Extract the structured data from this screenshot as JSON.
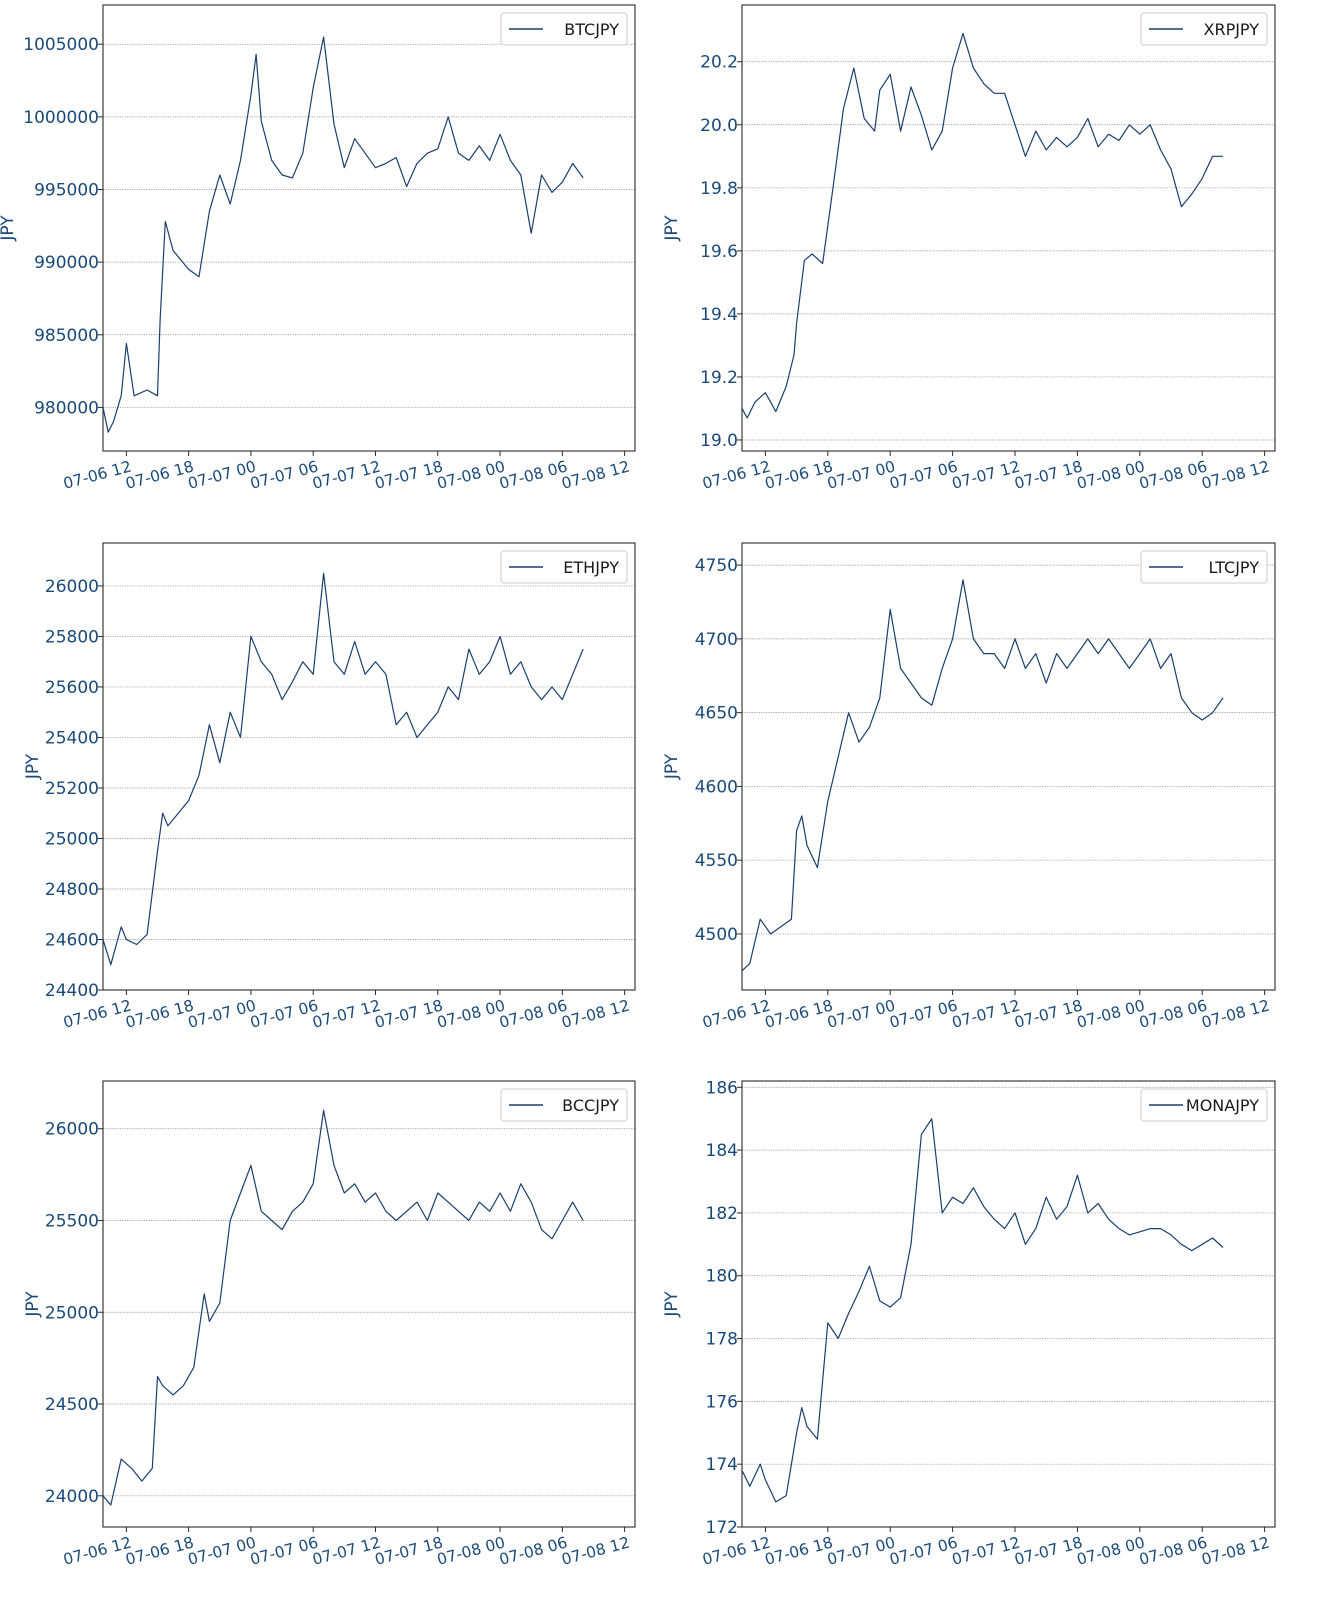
{
  "page": {
    "colors": {
      "series": "#1b3f6e",
      "axis": "#2a2a2a",
      "tick_label": "#1a4a7a",
      "grid": "#8a8a8a",
      "legend_text": "#1a1a1a"
    }
  },
  "x_axis": {
    "ticks": [
      "07-06 12",
      "07-06 18",
      "07-07 00",
      "07-07 06",
      "07-07 12",
      "07-07 18",
      "07-08 00",
      "07-08 06",
      "07-08 12"
    ],
    "range_start": "07-06 09:45",
    "range_end": "07-08 13:00",
    "data_end": "07-08 08:20"
  },
  "chart_data": [
    {
      "type": "line",
      "ylabel": "JPY",
      "ylim": [
        977000,
        1007700
      ],
      "yticks": [
        "980000",
        "985000",
        "990000",
        "995000",
        "1000000",
        "1005000"
      ],
      "yticks_values": [
        980000,
        985000,
        990000,
        995000,
        1000000,
        1005000
      ],
      "grid": "horizontal",
      "legend": "top-right",
      "series": [
        {
          "name": "BTCJPY",
          "x": [
            "07-06 09:45",
            "07-06 10:15",
            "07-06 10:45",
            "07-06 11:30",
            "07-06 12:00",
            "07-06 12:45",
            "07-06 14:00",
            "07-06 15:00",
            "07-06 15:15",
            "07-06 15:45",
            "07-06 16:30",
            "07-06 18:00",
            "07-06 19:00",
            "07-06 20:00",
            "07-06 21:00",
            "07-06 22:00",
            "07-06 23:00",
            "07-07 00:00",
            "07-07 00:30",
            "07-07 01:00",
            "07-07 02:00",
            "07-07 03:00",
            "07-07 04:00",
            "07-07 05:00",
            "07-07 06:00",
            "07-07 07:00",
            "07-07 08:00",
            "07-07 09:00",
            "07-07 10:00",
            "07-07 11:00",
            "07-07 12:00",
            "07-07 13:00",
            "07-07 14:00",
            "07-07 15:00",
            "07-07 16:00",
            "07-07 17:00",
            "07-07 18:00",
            "07-07 19:00",
            "07-07 20:00",
            "07-07 21:00",
            "07-07 22:00",
            "07-07 23:00",
            "07-08 00:00",
            "07-08 01:00",
            "07-08 02:00",
            "07-08 03:00",
            "07-08 04:00",
            "07-08 05:00",
            "07-08 06:00",
            "07-08 07:00",
            "07-08 08:00"
          ],
          "values": [
            980000,
            978300,
            979000,
            980800,
            984400,
            980800,
            981200,
            980800,
            986000,
            992800,
            990800,
            989500,
            989000,
            993500,
            996000,
            994000,
            997000,
            1001500,
            1004300,
            999700,
            997000,
            996000,
            995800,
            997500,
            1002000,
            1005500,
            999500,
            996500,
            998500,
            997500,
            996500,
            996800,
            997200,
            995200,
            996800,
            997500,
            997800,
            1000000,
            997500,
            997000,
            998000,
            997000,
            998800,
            997000,
            996000,
            992000,
            996000,
            994800,
            995500,
            996800,
            995800
          ]
        }
      ]
    },
    {
      "type": "line",
      "ylabel": "JPY",
      "ylim": [
        18.965,
        20.38
      ],
      "yticks": [
        "19.0",
        "19.2",
        "19.4",
        "19.6",
        "19.8",
        "20.0",
        "20.2"
      ],
      "yticks_values": [
        19.0,
        19.2,
        19.4,
        19.6,
        19.8,
        20.0,
        20.2
      ],
      "grid": "horizontal",
      "legend": "top-right",
      "series": [
        {
          "name": "XRPJPY",
          "x": [
            "07-06 09:45",
            "07-06 10:15",
            "07-06 11:00",
            "07-06 12:00",
            "07-06 13:00",
            "07-06 14:00",
            "07-06 14:45",
            "07-06 15:00",
            "07-06 15:45",
            "07-06 16:30",
            "07-06 17:30",
            "07-06 18:30",
            "07-06 19:30",
            "07-06 20:30",
            "07-06 21:30",
            "07-06 22:30",
            "07-06 23:00",
            "07-07 00:00",
            "07-07 01:00",
            "07-07 02:00",
            "07-07 03:00",
            "07-07 04:00",
            "07-07 05:00",
            "07-07 06:00",
            "07-07 07:00",
            "07-07 08:00",
            "07-07 09:00",
            "07-07 10:00",
            "07-07 11:00",
            "07-07 12:00",
            "07-07 13:00",
            "07-07 14:00",
            "07-07 15:00",
            "07-07 16:00",
            "07-07 17:00",
            "07-07 18:00",
            "07-07 19:00",
            "07-07 20:00",
            "07-07 21:00",
            "07-07 22:00",
            "07-07 23:00",
            "07-08 00:00",
            "07-08 01:00",
            "07-08 02:00",
            "07-08 03:00",
            "07-08 04:00",
            "07-08 05:00",
            "07-08 06:00",
            "07-08 07:00",
            "07-08 08:00"
          ],
          "values": [
            19.1,
            19.07,
            19.12,
            19.15,
            19.09,
            19.17,
            19.27,
            19.37,
            19.57,
            19.59,
            19.56,
            19.8,
            20.05,
            20.18,
            20.02,
            19.98,
            20.11,
            20.16,
            19.98,
            20.12,
            20.03,
            19.92,
            19.98,
            20.18,
            20.29,
            20.18,
            20.13,
            20.1,
            20.1,
            20.0,
            19.9,
            19.98,
            19.92,
            19.96,
            19.93,
            19.96,
            20.02,
            19.93,
            19.97,
            19.95,
            20.0,
            19.97,
            20.0,
            19.92,
            19.86,
            19.74,
            19.78,
            19.83,
            19.9,
            19.9
          ]
        }
      ]
    },
    {
      "type": "line",
      "ylabel": "JPY",
      "ylim": [
        24400,
        26170
      ],
      "yticks": [
        "24400",
        "24600",
        "24800",
        "25000",
        "25200",
        "25400",
        "25600",
        "25800",
        "26000"
      ],
      "yticks_values": [
        24400,
        24600,
        24800,
        25000,
        25200,
        25400,
        25600,
        25800,
        26000
      ],
      "grid": "horizontal",
      "legend": "top-right",
      "series": [
        {
          "name": "ETHJPY",
          "x": [
            "07-06 09:45",
            "07-06 10:30",
            "07-06 11:30",
            "07-06 12:00",
            "07-06 13:00",
            "07-06 14:00",
            "07-06 15:00",
            "07-06 15:30",
            "07-06 16:00",
            "07-06 17:00",
            "07-06 18:00",
            "07-06 19:00",
            "07-06 20:00",
            "07-06 21:00",
            "07-06 22:00",
            "07-06 23:00",
            "07-07 00:00",
            "07-07 01:00",
            "07-07 02:00",
            "07-07 03:00",
            "07-07 04:00",
            "07-07 05:00",
            "07-07 06:00",
            "07-07 07:00",
            "07-07 08:00",
            "07-07 09:00",
            "07-07 10:00",
            "07-07 11:00",
            "07-07 12:00",
            "07-07 13:00",
            "07-07 14:00",
            "07-07 15:00",
            "07-07 16:00",
            "07-07 17:00",
            "07-07 18:00",
            "07-07 19:00",
            "07-07 20:00",
            "07-07 21:00",
            "07-07 22:00",
            "07-07 23:00",
            "07-08 00:00",
            "07-08 01:00",
            "07-08 02:00",
            "07-08 03:00",
            "07-08 04:00",
            "07-08 05:00",
            "07-08 06:00",
            "07-08 07:00",
            "07-08 08:00"
          ],
          "values": [
            24600,
            24500,
            24650,
            24600,
            24580,
            24620,
            24950,
            25100,
            25050,
            25100,
            25150,
            25250,
            25450,
            25300,
            25500,
            25400,
            25800,
            25700,
            25650,
            25550,
            25620,
            25700,
            25650,
            26050,
            25700,
            25650,
            25780,
            25650,
            25700,
            25650,
            25450,
            25500,
            25400,
            25450,
            25500,
            25600,
            25550,
            25750,
            25650,
            25700,
            25800,
            25650,
            25700,
            25600,
            25550,
            25600,
            25550,
            25650,
            25750
          ]
        }
      ]
    },
    {
      "type": "line",
      "ylabel": "JPY",
      "ylim": [
        4462,
        4765
      ],
      "yticks": [
        "4500",
        "4550",
        "4600",
        "4650",
        "4700",
        "4750"
      ],
      "yticks_values": [
        4500,
        4550,
        4600,
        4650,
        4700,
        4750
      ],
      "grid": "horizontal",
      "legend": "top-right",
      "series": [
        {
          "name": "LTCJPY",
          "x": [
            "07-06 09:45",
            "07-06 10:30",
            "07-06 11:30",
            "07-06 12:30",
            "07-06 13:30",
            "07-06 14:30",
            "07-06 15:00",
            "07-06 15:30",
            "07-06 16:00",
            "07-06 17:00",
            "07-06 18:00",
            "07-06 19:00",
            "07-06 20:00",
            "07-06 21:00",
            "07-06 22:00",
            "07-06 23:00",
            "07-07 00:00",
            "07-07 01:00",
            "07-07 02:00",
            "07-07 03:00",
            "07-07 04:00",
            "07-07 05:00",
            "07-07 06:00",
            "07-07 07:00",
            "07-07 08:00",
            "07-07 09:00",
            "07-07 10:00",
            "07-07 11:00",
            "07-07 12:00",
            "07-07 13:00",
            "07-07 14:00",
            "07-07 15:00",
            "07-07 16:00",
            "07-07 17:00",
            "07-07 18:00",
            "07-07 19:00",
            "07-07 20:00",
            "07-07 21:00",
            "07-07 22:00",
            "07-07 23:00",
            "07-08 00:00",
            "07-08 01:00",
            "07-08 02:00",
            "07-08 03:00",
            "07-08 04:00",
            "07-08 05:00",
            "07-08 06:00",
            "07-08 07:00",
            "07-08 08:00"
          ],
          "values": [
            4475,
            4480,
            4510,
            4500,
            4505,
            4510,
            4570,
            4580,
            4560,
            4545,
            4590,
            4620,
            4650,
            4630,
            4640,
            4660,
            4720,
            4680,
            4670,
            4660,
            4655,
            4680,
            4700,
            4740,
            4700,
            4690,
            4690,
            4680,
            4700,
            4680,
            4690,
            4670,
            4690,
            4680,
            4690,
            4700,
            4690,
            4700,
            4690,
            4680,
            4690,
            4700,
            4680,
            4690,
            4660,
            4650,
            4645,
            4650,
            4660
          ]
        }
      ]
    },
    {
      "type": "line",
      "ylabel": "JPY",
      "ylim": [
        23830,
        26260
      ],
      "yticks": [
        "24000",
        "24500",
        "25000",
        "25500",
        "26000"
      ],
      "yticks_values": [
        24000,
        24500,
        25000,
        25500,
        26000
      ],
      "grid": "horizontal",
      "legend": "top-right",
      "series": [
        {
          "name": "BCCJPY",
          "x": [
            "07-06 09:45",
            "07-06 10:30",
            "07-06 11:30",
            "07-06 12:30",
            "07-06 13:30",
            "07-06 14:30",
            "07-06 15:00",
            "07-06 15:30",
            "07-06 16:30",
            "07-06 17:30",
            "07-06 18:30",
            "07-06 19:30",
            "07-06 20:00",
            "07-06 21:00",
            "07-06 22:00",
            "07-06 23:00",
            "07-07 00:00",
            "07-07 01:00",
            "07-07 02:00",
            "07-07 03:00",
            "07-07 04:00",
            "07-07 05:00",
            "07-07 06:00",
            "07-07 07:00",
            "07-07 08:00",
            "07-07 09:00",
            "07-07 10:00",
            "07-07 11:00",
            "07-07 12:00",
            "07-07 13:00",
            "07-07 14:00",
            "07-07 15:00",
            "07-07 16:00",
            "07-07 17:00",
            "07-07 18:00",
            "07-07 19:00",
            "07-07 20:00",
            "07-07 21:00",
            "07-07 22:00",
            "07-07 23:00",
            "07-08 00:00",
            "07-08 01:00",
            "07-08 02:00",
            "07-08 03:00",
            "07-08 04:00",
            "07-08 05:00",
            "07-08 06:00",
            "07-08 07:00",
            "07-08 08:00"
          ],
          "values": [
            24000,
            23950,
            24200,
            24150,
            24080,
            24150,
            24650,
            24600,
            24550,
            24600,
            24700,
            25100,
            24950,
            25050,
            25500,
            25650,
            25800,
            25550,
            25500,
            25450,
            25550,
            25600,
            25700,
            26100,
            25800,
            25650,
            25700,
            25600,
            25650,
            25550,
            25500,
            25550,
            25600,
            25500,
            25650,
            25600,
            25550,
            25500,
            25600,
            25550,
            25650,
            25550,
            25700,
            25600,
            25450,
            25400,
            25500,
            25600,
            25500
          ]
        }
      ]
    },
    {
      "type": "line",
      "ylabel": "JPY",
      "ylim": [
        172.0,
        186.2
      ],
      "yticks": [
        "172",
        "174",
        "176",
        "178",
        "180",
        "182",
        "184",
        "186"
      ],
      "yticks_values": [
        172,
        174,
        176,
        178,
        180,
        182,
        184,
        186
      ],
      "grid": "horizontal",
      "legend": "top-right",
      "series": [
        {
          "name": "MONAJPY",
          "x": [
            "07-06 09:45",
            "07-06 10:30",
            "07-06 11:30",
            "07-06 12:00",
            "07-06 13:00",
            "07-06 14:00",
            "07-06 15:00",
            "07-06 15:30",
            "07-06 16:00",
            "07-06 17:00",
            "07-06 18:00",
            "07-06 19:00",
            "07-06 20:00",
            "07-06 21:00",
            "07-06 22:00",
            "07-06 23:00",
            "07-07 00:00",
            "07-07 01:00",
            "07-07 02:00",
            "07-07 03:00",
            "07-07 04:00",
            "07-07 05:00",
            "07-07 06:00",
            "07-07 07:00",
            "07-07 08:00",
            "07-07 09:00",
            "07-07 10:00",
            "07-07 11:00",
            "07-07 12:00",
            "07-07 13:00",
            "07-07 14:00",
            "07-07 15:00",
            "07-07 16:00",
            "07-07 17:00",
            "07-07 18:00",
            "07-07 19:00",
            "07-07 20:00",
            "07-07 21:00",
            "07-07 22:00",
            "07-07 23:00",
            "07-08 00:00",
            "07-08 01:00",
            "07-08 02:00",
            "07-08 03:00",
            "07-08 04:00",
            "07-08 05:00",
            "07-08 06:00",
            "07-08 07:00",
            "07-08 08:00"
          ],
          "values": [
            173.8,
            173.3,
            174.0,
            173.5,
            172.8,
            173.0,
            175.0,
            175.8,
            175.2,
            174.8,
            178.5,
            178.0,
            178.8,
            179.5,
            180.3,
            179.2,
            179.0,
            179.3,
            181.0,
            184.5,
            185.0,
            182.0,
            182.5,
            182.3,
            182.8,
            182.2,
            181.8,
            181.5,
            182.0,
            181.0,
            181.5,
            182.5,
            181.8,
            182.2,
            183.2,
            182.0,
            182.3,
            181.8,
            181.5,
            181.3,
            181.4,
            181.5,
            181.5,
            181.3,
            181.0,
            180.8,
            181.0,
            181.2,
            180.9
          ]
        }
      ]
    }
  ]
}
